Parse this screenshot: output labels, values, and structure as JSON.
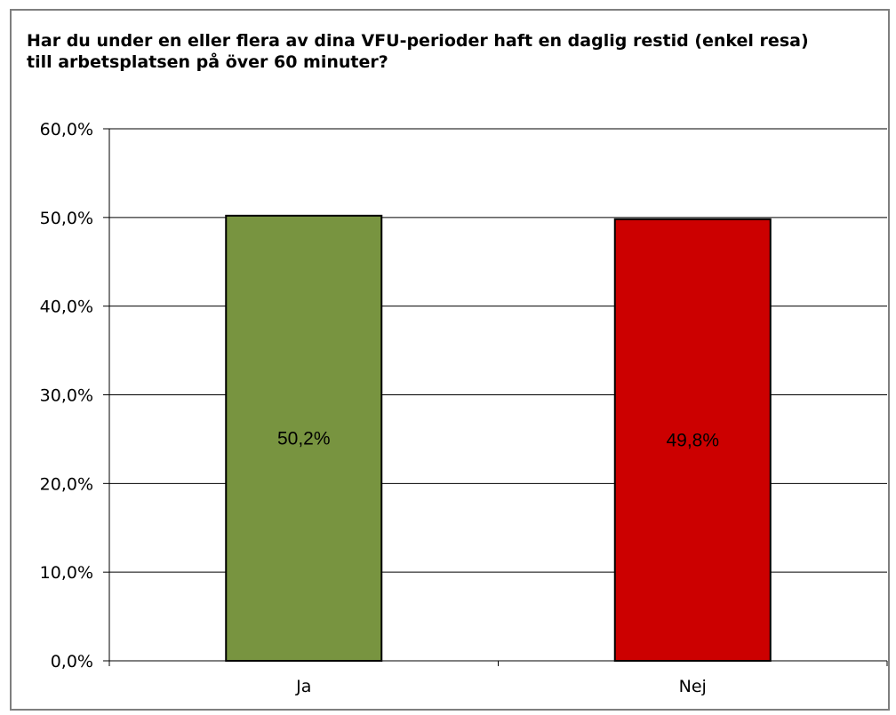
{
  "chart_data": {
    "type": "bar",
    "title": "Har du under en eller flera av dina VFU-perioder haft en daglig restid (enkel resa) till arbetsplatsen på över 60 minuter?",
    "categories": [
      "Ja",
      "Nej"
    ],
    "values": [
      50.2,
      49.8
    ],
    "data_labels": [
      "50,2%",
      "49,8%"
    ],
    "bar_colors": [
      "#789440",
      "#cc0000"
    ],
    "ylim": [
      0,
      60
    ],
    "yticks": [
      0,
      10,
      20,
      30,
      40,
      50,
      60
    ],
    "ytick_labels": [
      "0,0%",
      "10,0%",
      "20,0%",
      "30,0%",
      "40,0%",
      "50,0%",
      "60,0%"
    ],
    "xlabel": "",
    "ylabel": "",
    "grid": true,
    "legend": false
  }
}
